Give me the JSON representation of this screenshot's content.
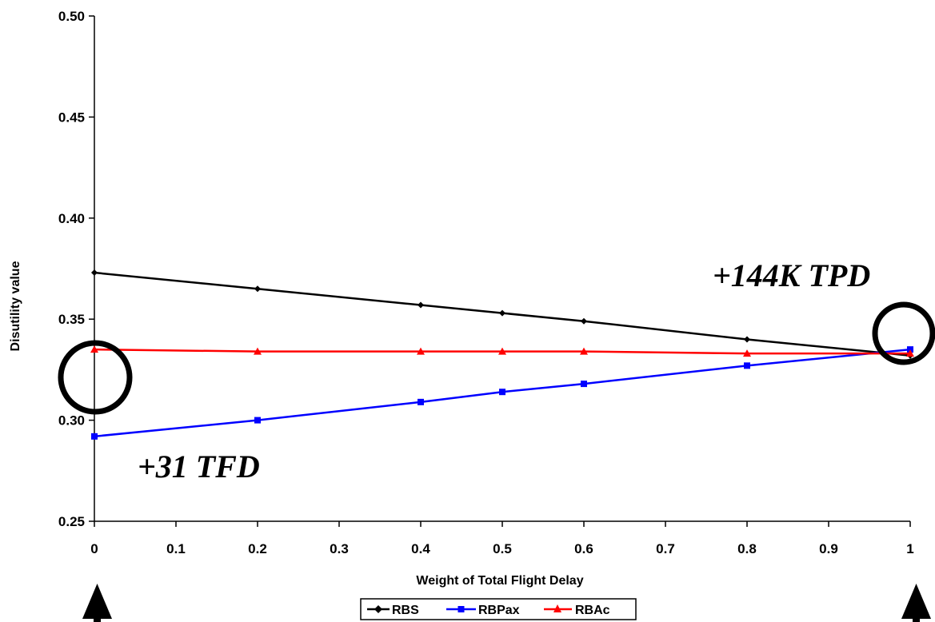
{
  "chart_data": {
    "type": "line",
    "xlabel": "Weight of Total Flight Delay",
    "ylabel": "Disutility value",
    "xlim": [
      0,
      1
    ],
    "ylim": [
      0.25,
      0.5
    ],
    "x_ticks": [
      "0",
      "0.1",
      "0.2",
      "0.3",
      "0.4",
      "0.5",
      "0.6",
      "0.7",
      "0.8",
      "0.9",
      "1"
    ],
    "y_ticks": [
      "0.25",
      "0.30",
      "0.35",
      "0.40",
      "0.45",
      "0.50"
    ],
    "x": [
      0,
      0.2,
      0.4,
      0.5,
      0.6,
      0.8,
      1
    ],
    "series": [
      {
        "name": "RBS",
        "color": "#000000",
        "marker": "diamond",
        "values": [
          0.373,
          0.365,
          0.357,
          0.353,
          0.349,
          0.34,
          0.332
        ]
      },
      {
        "name": "RBPax",
        "color": "#0000ff",
        "marker": "square",
        "values": [
          0.292,
          0.3,
          0.309,
          0.314,
          0.318,
          0.327,
          0.335
        ]
      },
      {
        "name": "RBAc",
        "color": "#ff0000",
        "marker": "triangle",
        "values": [
          0.335,
          0.334,
          0.334,
          0.334,
          0.334,
          0.333,
          0.333
        ]
      }
    ],
    "annotations": [
      {
        "text": "+144K TPD",
        "x": 0.98,
        "y": 0.335
      },
      {
        "text": "+31 TFD",
        "x": 0,
        "y": 0.292
      }
    ],
    "grid": false,
    "legend_position": "bottom"
  }
}
